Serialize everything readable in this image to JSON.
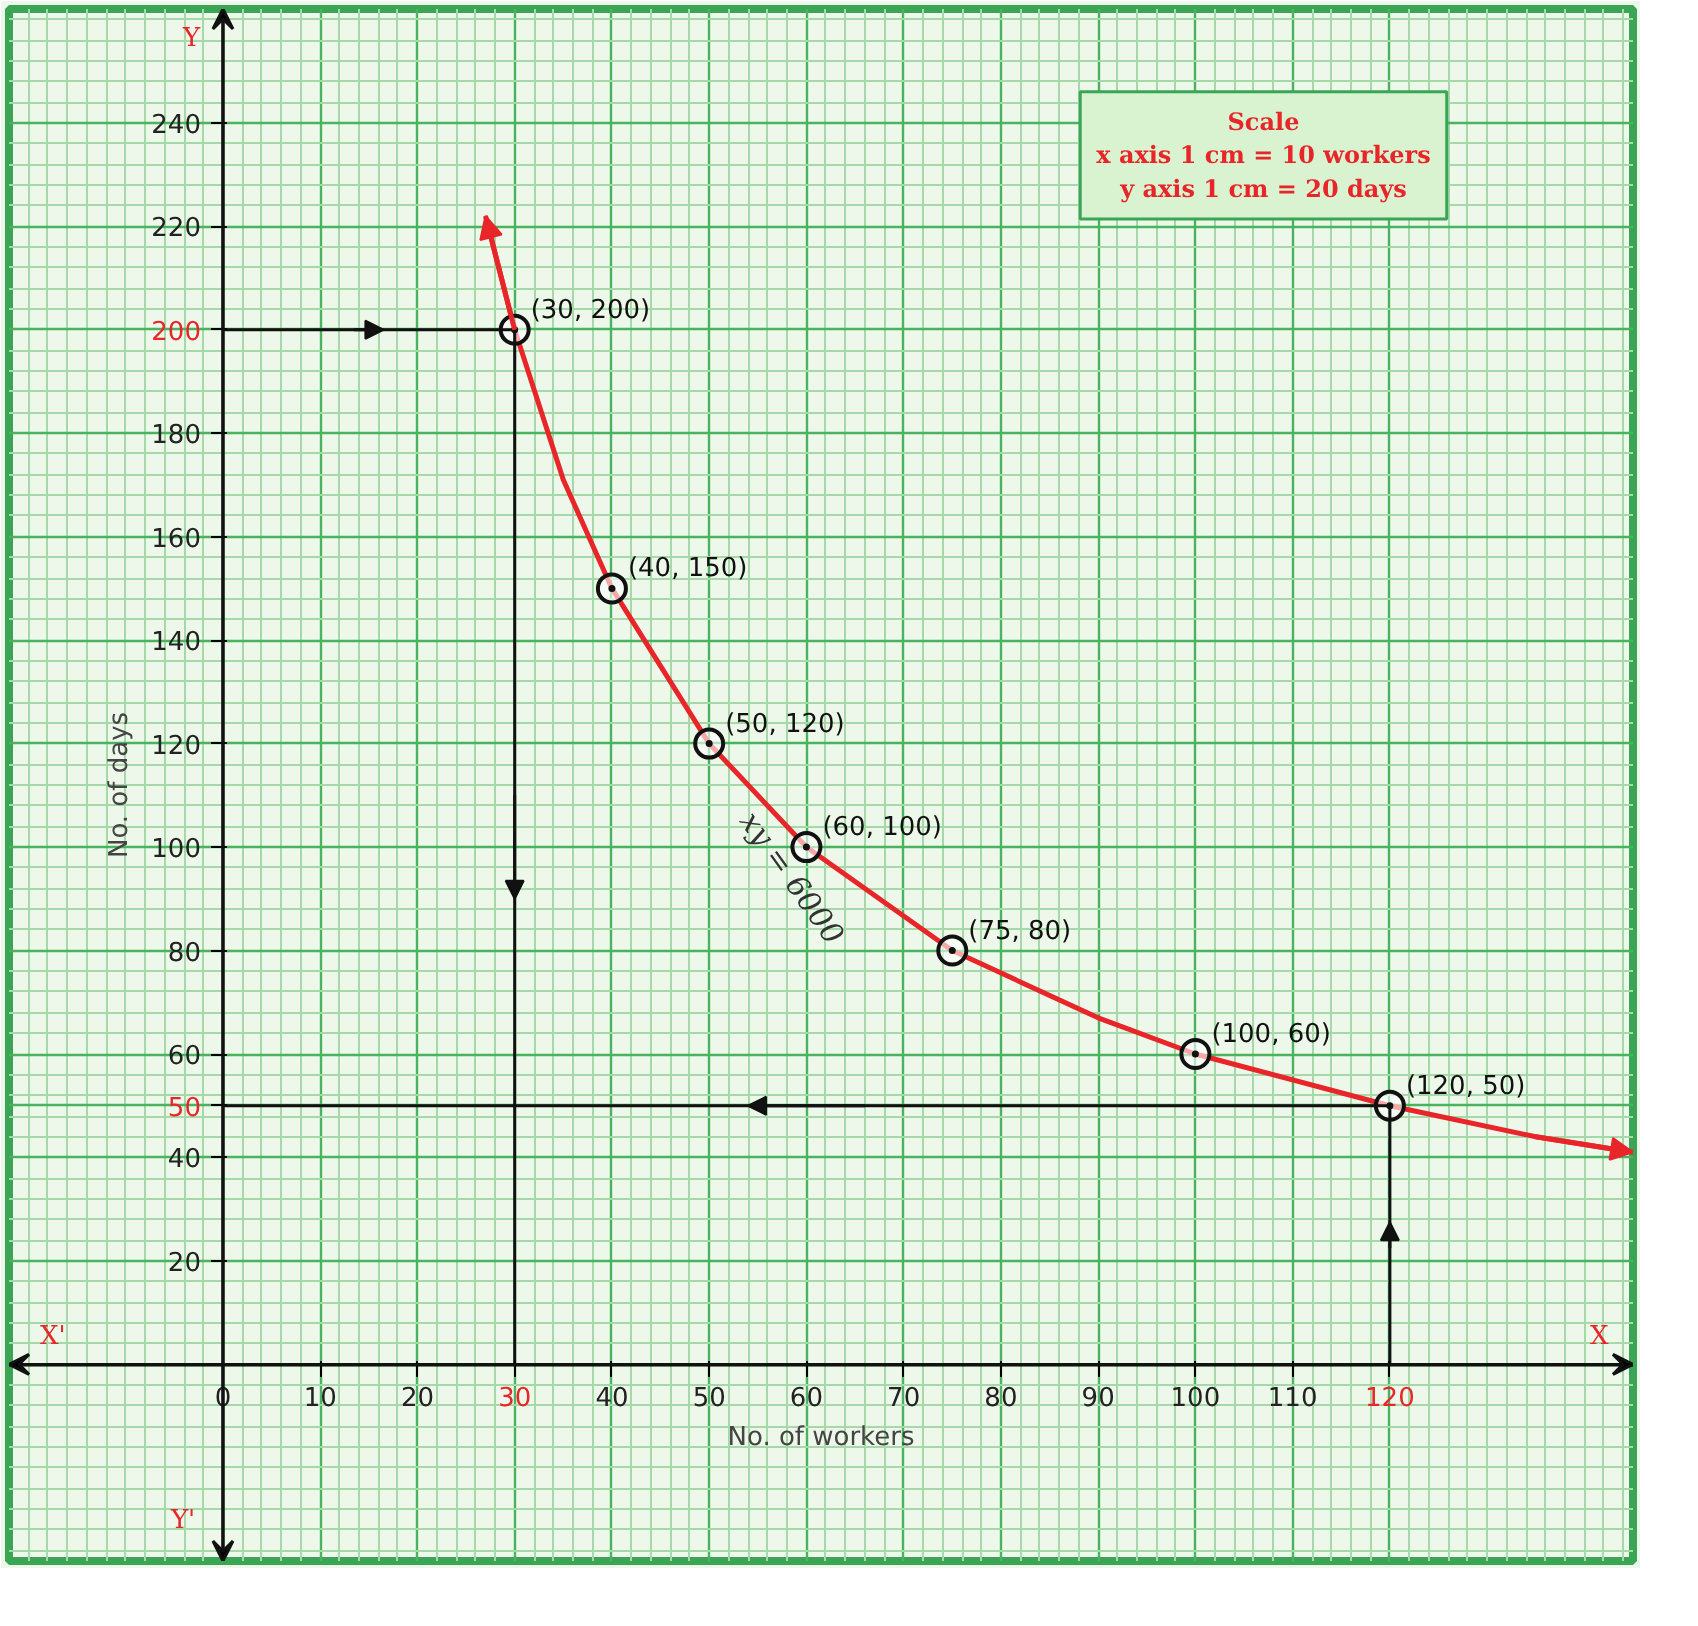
{
  "chart_data": {
    "type": "scatter",
    "xlabel": "No. of workers",
    "ylabel": "No. of days",
    "xlim": [
      -22,
      145
    ],
    "ylim": [
      -38,
      262
    ],
    "xticks": [
      0,
      10,
      20,
      30,
      40,
      50,
      60,
      70,
      80,
      90,
      100,
      110,
      120
    ],
    "yticks": [
      20,
      40,
      50,
      60,
      80,
      100,
      120,
      140,
      160,
      180,
      200,
      220,
      240
    ],
    "grid": true,
    "series": [
      {
        "type": "line",
        "color": "#e8262a",
        "marker": "none",
        "x": [
          27,
          30,
          35,
          40,
          50,
          60,
          75,
          90,
          100,
          120,
          135,
          145
        ],
        "values": [
          222,
          200,
          171,
          150,
          120,
          100,
          80,
          67,
          60,
          50,
          44,
          41
        ]
      },
      {
        "color": "#111111",
        "marker": "circle",
        "x": [
          30,
          40,
          50,
          60,
          75,
          100,
          120
        ],
        "values": [
          200,
          150,
          120,
          100,
          80,
          60,
          50
        ],
        "value_labels": [
          "(30, 200)",
          "(40, 150)",
          "(50, 120)",
          "(60, 100)",
          "(75, 80)",
          "(100, 60)",
          "(120, 50)"
        ]
      },
      {
        "type": "line",
        "color": "#111111",
        "marker": "none",
        "x": [
          0,
          30,
          30
        ],
        "values": [
          200,
          200,
          0
        ]
      },
      {
        "type": "line",
        "color": "#111111",
        "marker": "none",
        "x": [
          120,
          120,
          0
        ],
        "values": [
          0,
          50,
          50
        ]
      }
    ],
    "annotations": [
      "X'",
      "X",
      "Y",
      "Y'",
      "Scale",
      "x axis 1 cm = 10 workers",
      "y axis 1 cm = 20 days",
      "xy = 6000"
    ]
  }
}
